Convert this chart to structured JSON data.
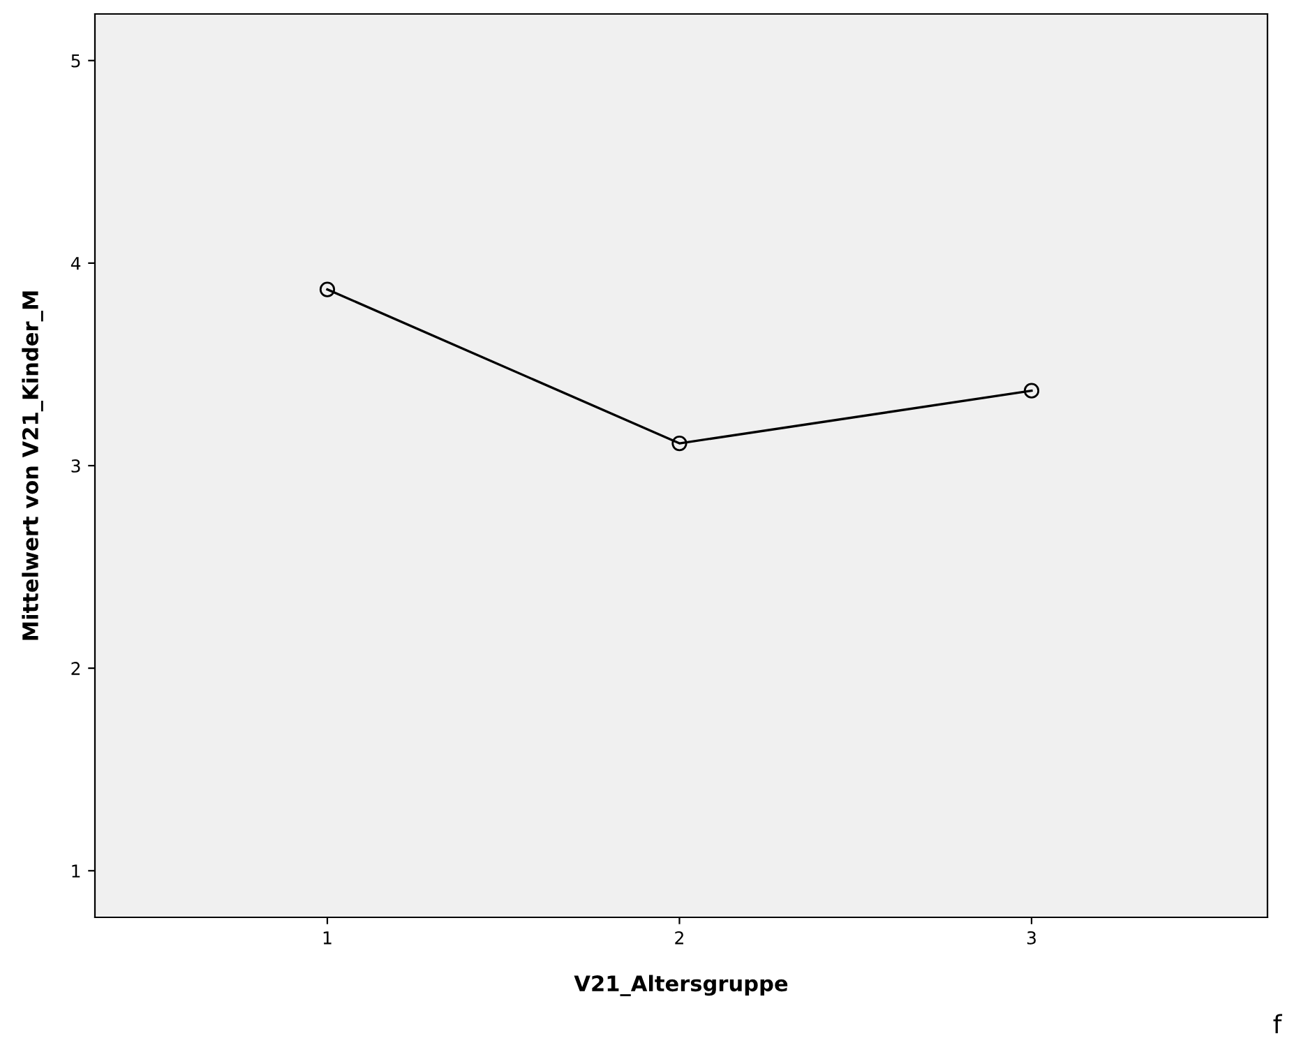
{
  "chart_data": {
    "type": "line",
    "xlabel": "V21_Altersgruppe",
    "ylabel": "Mittelwert von V21_Kinder_M",
    "x": [
      1,
      2,
      3
    ],
    "series": [
      {
        "color": "#000000",
        "values": [
          3.87,
          3.11,
          3.37
        ]
      }
    ],
    "xlim": [
      0.34,
      3.67
    ],
    "xticks": [
      1,
      2,
      3
    ],
    "ylim": [
      0.77,
      5.23
    ],
    "yticks": [
      1,
      2,
      3,
      4,
      5
    ],
    "marker": "circle",
    "line_style": "solid",
    "grid": false,
    "annotations": [
      "f"
    ]
  }
}
